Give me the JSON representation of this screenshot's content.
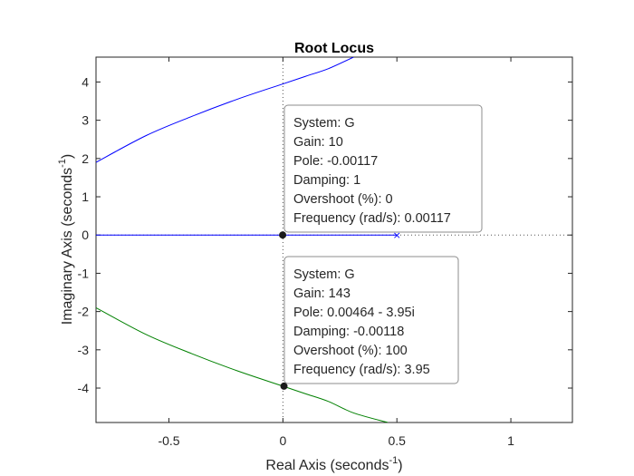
{
  "chart_data": {
    "type": "line",
    "title": "Root Locus",
    "xlabel": "Real Axis (seconds",
    "xlabel_sup": "-1",
    "xlabel_close": ")",
    "ylabel": "Imaginary Axis (seconds",
    "ylabel_sup": "-1",
    "ylabel_close": ")",
    "xlim": [
      -0.82,
      1.27
    ],
    "ylim": [
      -4.9,
      4.65
    ],
    "xticks": [
      -0.5,
      0,
      0.5,
      1
    ],
    "xtick_labels": [
      "-0.5",
      "0",
      "0.5",
      "1"
    ],
    "yticks": [
      -4,
      -3,
      -2,
      -1,
      0,
      1,
      2,
      3,
      4
    ],
    "ytick_labels": [
      "-4",
      "-3",
      "-2",
      "-1",
      "0",
      "1",
      "2",
      "3",
      "4"
    ],
    "grid": false,
    "series": [
      {
        "color": "#0000ff",
        "x": [
          -0.82,
          -0.6,
          -0.4,
          -0.2,
          0.0,
          0.1,
          0.2,
          0.31
        ],
        "y": [
          1.9,
          2.6,
          3.1,
          3.55,
          3.95,
          4.15,
          4.35,
          4.65
        ]
      },
      {
        "color": "#0000ff",
        "x": [
          -0.82,
          0.5
        ],
        "y": [
          0,
          0
        ]
      },
      {
        "color": "#008000",
        "x": [
          -0.82,
          -0.6,
          -0.4,
          -0.2,
          0.0,
          0.1,
          0.2,
          0.31,
          0.46
        ],
        "y": [
          -1.9,
          -2.6,
          -3.1,
          -3.55,
          -3.95,
          -4.15,
          -4.35,
          -4.65,
          -4.9
        ]
      }
    ],
    "pole_marker": {
      "x": 0.5,
      "y": 0,
      "symbol": "×",
      "color": "#0000ff"
    },
    "reference_lines": {
      "x": 0,
      "y": 0
    },
    "selected_points": [
      {
        "x": -0.00117,
        "y": 0
      },
      {
        "x": 0.00464,
        "y": -3.95
      }
    ],
    "datatips": [
      {
        "lines": [
          "System: G",
          "Gain: 10",
          "Pole: -0.00117",
          "Damping: 1",
          "Overshoot (%): 0",
          "Frequency (rad/s): 0.00117"
        ]
      },
      {
        "lines": [
          "System: G",
          "Gain: 143",
          "Pole: 0.00464 - 3.95i",
          "Damping: -0.00118",
          "Overshoot (%): 100",
          "Frequency (rad/s): 3.95"
        ]
      }
    ]
  }
}
